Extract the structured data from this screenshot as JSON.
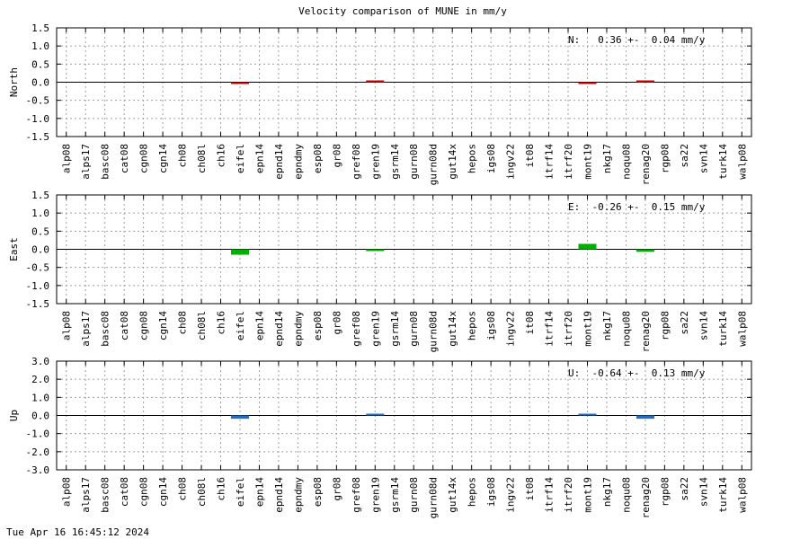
{
  "footer_timestamp": "Tue Apr 16 16:45:12 2024",
  "chart_data": [
    {
      "type": "bar",
      "title": "Velocity comparison of MUNE in mm/y",
      "ylabel": "North",
      "annotation": "N:   0.36 +-  0.04 mm/y",
      "color": "#cc0000",
      "ylim": [
        -1.5,
        1.5
      ],
      "yticks": [
        "1.5",
        "1.0",
        "0.5",
        "0.0",
        "-0.5",
        "-1.0",
        "-1.5"
      ],
      "grid": true,
      "categories": [
        "alp08",
        "alps17",
        "basc08",
        "cat08",
        "cgn08",
        "cgn14",
        "ch08",
        "ch08l",
        "ch16",
        "eifel",
        "epn14",
        "epnd14",
        "epndmy",
        "esp08",
        "gr08",
        "gref08",
        "gren19",
        "gsrm14",
        "gurn08",
        "gurn08d",
        "gut14x",
        "hepos",
        "igs08",
        "ingv22",
        "it08",
        "itrf14",
        "itrf20",
        "mont19",
        "nkg17",
        "noqu08",
        "renag20",
        "rgp08",
        "sa22",
        "svn14",
        "turk14",
        "walp08"
      ],
      "values": [
        0,
        0,
        0,
        0,
        0,
        0,
        0,
        0,
        0,
        -0.02,
        0,
        0,
        0,
        0,
        0,
        0,
        0.01,
        0,
        0,
        0,
        0,
        0,
        0,
        0,
        0,
        0,
        0,
        -0.03,
        0,
        0,
        0.01,
        0,
        0,
        0,
        0,
        0
      ]
    },
    {
      "type": "bar",
      "title": "",
      "ylabel": "East",
      "annotation": "E:  -0.26 +-  0.15 mm/y",
      "color": "#00b000",
      "ylim": [
        -1.5,
        1.5
      ],
      "yticks": [
        "1.5",
        "1.0",
        "0.5",
        "0.0",
        "-0.5",
        "-1.0",
        "-1.5"
      ],
      "grid": true,
      "categories": [
        "alp08",
        "alps17",
        "basc08",
        "cat08",
        "cgn08",
        "cgn14",
        "ch08",
        "ch08l",
        "ch16",
        "eifel",
        "epn14",
        "epnd14",
        "epndmy",
        "esp08",
        "gr08",
        "gref08",
        "gren19",
        "gsrm14",
        "gurn08",
        "gurn08d",
        "gut14x",
        "hepos",
        "igs08",
        "ingv22",
        "it08",
        "itrf14",
        "itrf20",
        "mont19",
        "nkg17",
        "noqu08",
        "renag20",
        "rgp08",
        "sa22",
        "svn14",
        "turk14",
        "walp08"
      ],
      "values": [
        0,
        0,
        0,
        0,
        0,
        0,
        0,
        0,
        0,
        -0.15,
        0,
        0,
        0,
        0,
        0,
        0,
        -0.02,
        0,
        0,
        0,
        0,
        0,
        0,
        0,
        0,
        0,
        0,
        0.15,
        0,
        0,
        -0.07,
        0,
        0,
        0,
        0,
        0
      ]
    },
    {
      "type": "bar",
      "title": "",
      "ylabel": "Up",
      "annotation": "U:  -0.64 +-  0.13 mm/y",
      "color": "#1a6fd0",
      "ylim": [
        -3.0,
        3.0
      ],
      "yticks": [
        "3.0",
        "2.0",
        "1.0",
        "0.0",
        "-1.0",
        "-2.0",
        "-3.0"
      ],
      "grid": true,
      "categories": [
        "alp08",
        "alps17",
        "basc08",
        "cat08",
        "cgn08",
        "cgn14",
        "ch08",
        "ch08l",
        "ch16",
        "eifel",
        "epn14",
        "epnd14",
        "epndmy",
        "esp08",
        "gr08",
        "gref08",
        "gren19",
        "gsrm14",
        "gurn08",
        "gurn08d",
        "gut14x",
        "hepos",
        "igs08",
        "ingv22",
        "it08",
        "itrf14",
        "itrf20",
        "mont19",
        "nkg17",
        "noqu08",
        "renag20",
        "rgp08",
        "sa22",
        "svn14",
        "turk14",
        "walp08"
      ],
      "values": [
        0,
        0,
        0,
        0,
        0,
        0,
        0,
        0,
        0,
        -0.18,
        0,
        0,
        0,
        0,
        0,
        0,
        0.04,
        0,
        0,
        0,
        0,
        0,
        0,
        0,
        0,
        0,
        0,
        0.09,
        0,
        0,
        -0.18,
        0,
        0,
        0,
        0,
        0
      ]
    }
  ]
}
